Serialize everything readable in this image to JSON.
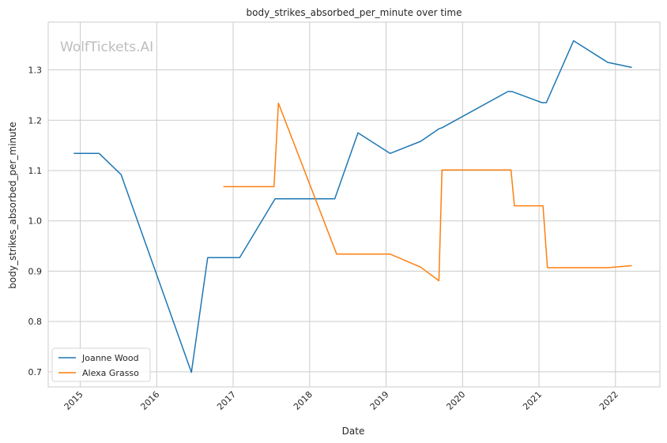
{
  "chart_data": {
    "type": "line",
    "title": "body_strikes_absorbed_per_minute over time",
    "xlabel": "Date",
    "ylabel": "body_strikes_absorbed_per_minute",
    "watermark": "WolfTickets.AI",
    "x_ticks": [
      "2015",
      "2016",
      "2017",
      "2018",
      "2019",
      "2020",
      "2021",
      "2022"
    ],
    "y_ticks": [
      "0.7",
      "0.8",
      "0.9",
      "1.0",
      "1.1",
      "1.2",
      "1.3"
    ],
    "xlim": [
      "2014-08-01",
      "2022-08-01"
    ],
    "ylim": [
      0.67,
      1.395
    ],
    "grid": true,
    "legend_position": "lower-left",
    "series": [
      {
        "name": "Joanne Wood",
        "color": "#1f77b4",
        "points": [
          [
            "2014-12-01",
            1.134
          ],
          [
            "2015-04-01",
            1.134
          ],
          [
            "2015-07-15",
            1.092
          ],
          [
            "2016-06-15",
            0.699
          ],
          [
            "2016-09-01",
            0.927
          ],
          [
            "2017-02-01",
            0.927
          ],
          [
            "2017-07-20",
            1.044
          ],
          [
            "2018-05-01",
            1.044
          ],
          [
            "2018-08-20",
            1.175
          ],
          [
            "2019-01-20",
            1.134
          ],
          [
            "2019-06-15",
            1.158
          ],
          [
            "2019-09-10",
            1.183
          ],
          [
            "2019-09-25",
            1.185
          ],
          [
            "2020-08-05",
            1.257
          ],
          [
            "2020-08-25",
            1.257
          ],
          [
            "2021-01-15",
            1.235
          ],
          [
            "2021-02-05",
            1.235
          ],
          [
            "2021-06-15",
            1.358
          ],
          [
            "2021-11-25",
            1.315
          ],
          [
            "2022-03-20",
            1.305
          ]
        ]
      },
      {
        "name": "Alexa Grasso",
        "color": "#ff7f0e",
        "points": [
          [
            "2016-11-15",
            1.068
          ],
          [
            "2017-07-15",
            1.068
          ],
          [
            "2017-08-05",
            1.234
          ],
          [
            "2018-05-10",
            0.934
          ],
          [
            "2019-01-20",
            0.934
          ],
          [
            "2019-06-15",
            0.908
          ],
          [
            "2019-09-10",
            0.881
          ],
          [
            "2019-09-25",
            1.101
          ],
          [
            "2020-08-20",
            1.101
          ],
          [
            "2020-09-05",
            1.03
          ],
          [
            "2021-01-20",
            1.03
          ],
          [
            "2021-02-10",
            0.907
          ],
          [
            "2021-11-25",
            0.907
          ],
          [
            "2022-03-20",
            0.911
          ]
        ]
      }
    ]
  }
}
